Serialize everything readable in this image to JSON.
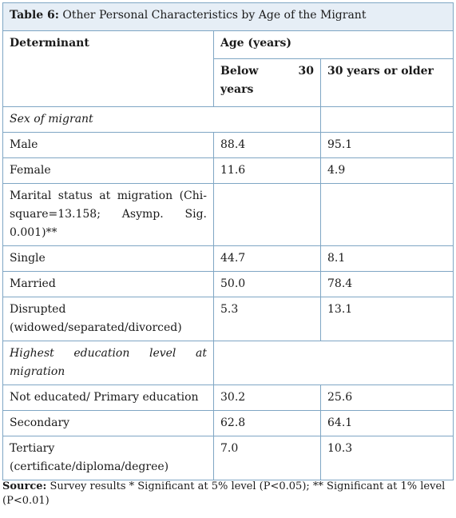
{
  "table": {
    "caption_label": "Table 6:",
    "caption_text": "Other Personal Characteristics by Age of the Migrant",
    "header": {
      "determinant": "Determinant",
      "age_group": "Age (years)",
      "col1_a": "Below",
      "col1_b": "30",
      "col1_c": "years",
      "col2": "30 years or older"
    },
    "rows": [
      {
        "label": "Sex of migrant",
        "c1": "",
        "c2": ""
      },
      {
        "label": "Male",
        "c1": "88.4",
        "c2": "95.1"
      },
      {
        "label": "Female",
        "c1": "11.6",
        "c2": "4.9"
      },
      {
        "label": "Marital status at migration (Chi-square=13.158; Asymp. Sig. 0.001)**",
        "c1": "",
        "c2": ""
      },
      {
        "label": "Single",
        "c1": "44.7",
        "c2": "8.1"
      },
      {
        "label": "Married",
        "c1": "50.0",
        "c2": "78.4"
      },
      {
        "label": "Disrupted (widowed/separated/divorced)",
        "c1": "5.3",
        "c2": "13.1"
      },
      {
        "label": "Highest education level at migration",
        "c1": "",
        "c2": ""
      },
      {
        "label": "Not educated/ Primary education",
        "c1": "30.2",
        "c2": "25.6"
      },
      {
        "label": "Secondary",
        "c1": "62.8",
        "c2": "64.1"
      },
      {
        "label": "Tertiary (certificate/diploma/degree)",
        "c1": "7.0",
        "c2": "10.3"
      }
    ]
  },
  "source": {
    "label": "Source:",
    "text": "Survey results * Significant at 5% level (P<0.05); ** Significant at 1% level (P<0.01)"
  }
}
